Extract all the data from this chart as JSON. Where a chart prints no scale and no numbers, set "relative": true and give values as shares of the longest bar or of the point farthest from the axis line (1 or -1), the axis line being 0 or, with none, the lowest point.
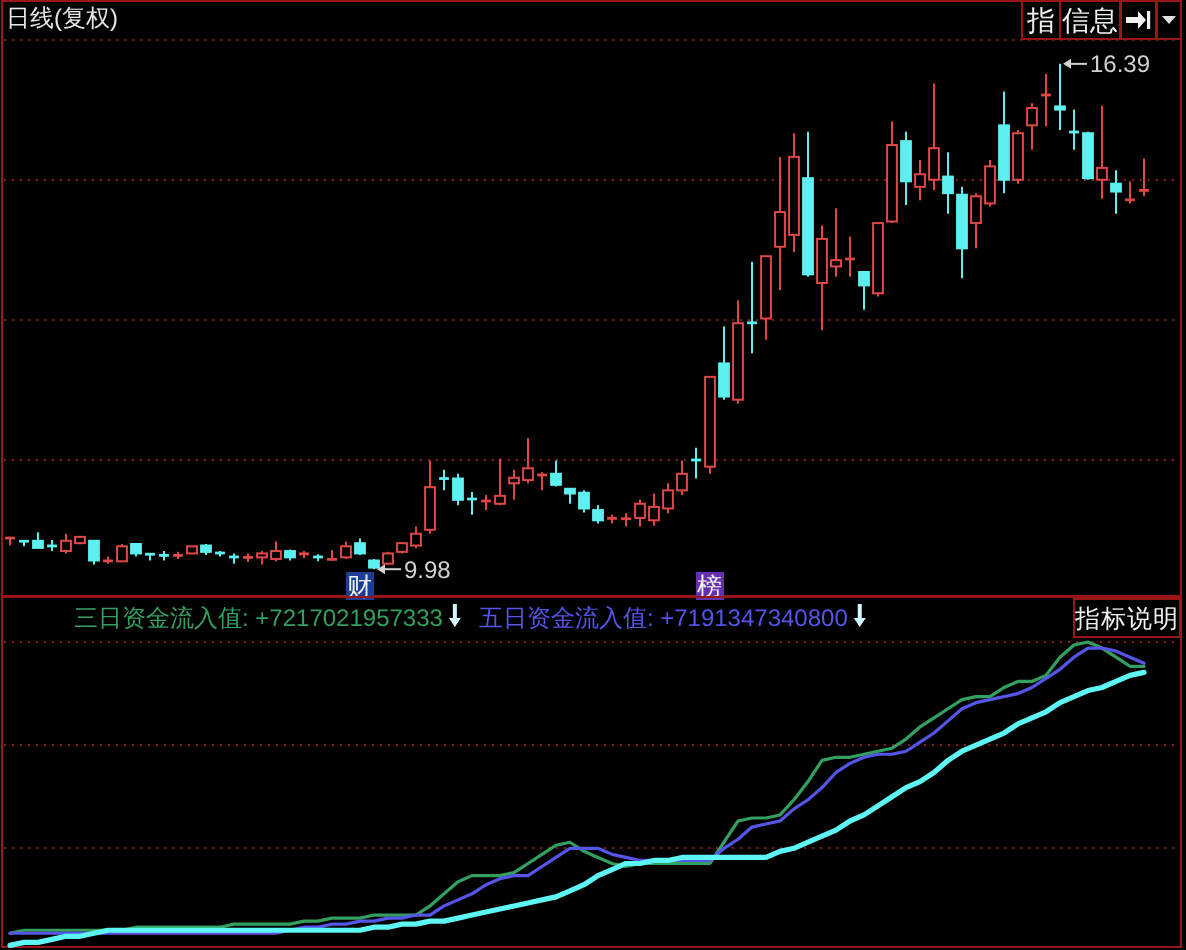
{
  "chart_data": [
    {
      "type": "candlestick",
      "title": "日线(复权)",
      "categories": [
        null,
        null,
        null,
        null,
        null,
        null,
        null,
        null,
        null,
        null,
        null,
        null,
        null,
        null,
        null,
        null,
        null,
        null,
        null,
        null,
        null,
        null,
        null,
        null,
        null,
        null,
        null,
        null,
        null,
        null,
        null,
        null,
        null,
        null,
        null,
        null,
        null,
        null,
        null,
        null,
        null,
        null,
        null,
        null,
        null,
        null,
        null,
        null,
        null,
        null,
        null,
        null,
        null,
        null,
        null,
        null,
        null,
        null,
        null,
        null,
        null,
        null,
        null,
        null,
        null,
        null,
        null,
        null,
        null,
        null,
        null,
        null,
        null,
        null,
        null,
        null,
        null,
        null,
        null,
        null,
        null,
        null
      ],
      "ohlc": [
        [
          10.37,
          10.39,
          10.28,
          10.38
        ],
        [
          10.34,
          10.34,
          10.27,
          10.33
        ],
        [
          10.34,
          10.45,
          10.25,
          10.25
        ],
        [
          10.28,
          10.35,
          10.21,
          10.27
        ],
        [
          10.21,
          10.43,
          10.18,
          10.34
        ],
        [
          10.31,
          10.4,
          10.3,
          10.39
        ],
        [
          10.34,
          10.34,
          10.04,
          10.09
        ],
        [
          10.08,
          10.14,
          10.05,
          10.09
        ],
        [
          10.08,
          10.3,
          10.07,
          10.27
        ],
        [
          10.3,
          10.31,
          10.14,
          10.18
        ],
        [
          10.18,
          10.18,
          10.09,
          10.16
        ],
        [
          10.16,
          10.21,
          10.09,
          10.15
        ],
        [
          10.15,
          10.2,
          10.11,
          10.16
        ],
        [
          10.18,
          10.27,
          10.17,
          10.27
        ],
        [
          10.28,
          10.3,
          10.16,
          10.2
        ],
        [
          10.19,
          10.21,
          10.14,
          10.18
        ],
        [
          10.14,
          10.18,
          10.05,
          10.13
        ],
        [
          10.12,
          10.18,
          10.07,
          10.14
        ],
        [
          10.13,
          10.21,
          10.04,
          10.18
        ],
        [
          10.11,
          10.33,
          10.08,
          10.21
        ],
        [
          10.21,
          10.23,
          10.09,
          10.13
        ],
        [
          10.17,
          10.21,
          10.12,
          10.18
        ],
        [
          10.14,
          10.17,
          10.08,
          10.13
        ],
        [
          10.1,
          10.22,
          10.09,
          10.11
        ],
        [
          10.13,
          10.33,
          10.11,
          10.27
        ],
        [
          10.31,
          10.37,
          10.16,
          10.18
        ],
        [
          10.09,
          10.11,
          9.98,
          10.0
        ],
        [
          10.05,
          10.2,
          10.04,
          10.18
        ],
        [
          10.2,
          10.32,
          10.18,
          10.31
        ],
        [
          10.28,
          10.52,
          10.25,
          10.43
        ],
        [
          10.48,
          11.36,
          10.43,
          11.02
        ],
        [
          11.14,
          11.24,
          10.98,
          11.12
        ],
        [
          11.13,
          11.19,
          10.79,
          10.86
        ],
        [
          10.88,
          10.96,
          10.67,
          10.86
        ],
        [
          10.83,
          10.92,
          10.73,
          10.86
        ],
        [
          10.81,
          11.38,
          10.79,
          10.91
        ],
        [
          11.07,
          11.24,
          10.86,
          11.14
        ],
        [
          11.11,
          11.64,
          11.07,
          11.26
        ],
        [
          11.17,
          11.21,
          10.98,
          11.18
        ],
        [
          11.19,
          11.36,
          11.03,
          11.05
        ],
        [
          11.0,
          11.0,
          10.81,
          10.94
        ],
        [
          10.95,
          10.98,
          10.7,
          10.75
        ],
        [
          10.73,
          10.79,
          10.56,
          10.6
        ],
        [
          10.62,
          10.67,
          10.56,
          10.63
        ],
        [
          10.61,
          10.69,
          10.52,
          10.63
        ],
        [
          10.63,
          10.86,
          10.52,
          10.81
        ],
        [
          10.6,
          10.94,
          10.53,
          10.77
        ],
        [
          10.75,
          11.07,
          10.69,
          10.98
        ],
        [
          10.98,
          11.36,
          10.92,
          11.19
        ],
        [
          11.37,
          11.52,
          11.13,
          11.36
        ],
        [
          11.28,
          12.42,
          11.19,
          12.42
        ],
        [
          12.59,
          13.06,
          12.13,
          12.17
        ],
        [
          12.13,
          13.39,
          12.08,
          13.1
        ],
        [
          13.12,
          13.88,
          12.72,
          13.09
        ],
        [
          13.16,
          13.95,
          12.89,
          13.95
        ],
        [
          14.07,
          15.21,
          13.52,
          14.51
        ],
        [
          14.22,
          15.51,
          14.0,
          15.21
        ],
        [
          14.94,
          15.53,
          13.69,
          13.72
        ],
        [
          13.61,
          14.34,
          13.01,
          14.17
        ],
        [
          13.82,
          14.56,
          13.69,
          13.9
        ],
        [
          13.91,
          14.2,
          13.69,
          13.92
        ],
        [
          13.75,
          13.75,
          13.27,
          13.58
        ],
        [
          13.48,
          14.37,
          13.44,
          14.37
        ],
        [
          14.39,
          15.66,
          14.37,
          15.36
        ],
        [
          15.41,
          15.53,
          14.6,
          14.9
        ],
        [
          14.83,
          15.17,
          14.66,
          14.99
        ],
        [
          14.92,
          16.14,
          14.79,
          15.32
        ],
        [
          14.96,
          15.27,
          14.49,
          14.75
        ],
        [
          14.73,
          14.83,
          13.67,
          14.05
        ],
        [
          14.37,
          14.75,
          14.05,
          14.71
        ],
        [
          14.62,
          15.17,
          14.58,
          15.09
        ],
        [
          15.61,
          16.04,
          14.75,
          14.92
        ],
        [
          14.92,
          15.55,
          14.87,
          15.51
        ],
        [
          15.61,
          15.89,
          15.3,
          15.83
        ],
        [
          15.99,
          16.26,
          15.6,
          16.0
        ],
        [
          15.85,
          16.39,
          15.55,
          15.81
        ],
        [
          15.54,
          15.81,
          15.3,
          15.51
        ],
        [
          15.51,
          15.53,
          14.92,
          14.94
        ],
        [
          14.92,
          15.86,
          14.68,
          15.07
        ],
        [
          14.87,
          15.04,
          14.49,
          14.77
        ],
        [
          14.66,
          14.9,
          14.62,
          14.67
        ],
        [
          14.78,
          15.19,
          14.71,
          14.79
        ]
      ],
      "colors": [
        "#e04848",
        "#5ef0f0",
        "#5ef0f0",
        "#5ef0f0",
        "#e04848",
        "#e04848",
        "#5ef0f0",
        "#e04848",
        "#e04848",
        "#5ef0f0",
        "#5ef0f0",
        "#5ef0f0",
        "#e04848",
        "#e04848",
        "#5ef0f0",
        "#5ef0f0",
        "#5ef0f0",
        "#e04848",
        "#e04848",
        "#e04848",
        "#5ef0f0",
        "#e04848",
        "#5ef0f0",
        "#e04848",
        "#e04848",
        "#5ef0f0",
        "#5ef0f0",
        "#e04848",
        "#e04848",
        "#e04848",
        "#e04848",
        "#5ef0f0",
        "#5ef0f0",
        "#5ef0f0",
        "#e04848",
        "#e04848",
        "#e04848",
        "#e04848",
        "#e04848",
        "#5ef0f0",
        "#5ef0f0",
        "#5ef0f0",
        "#5ef0f0",
        "#e04848",
        "#e04848",
        "#e04848",
        "#e04848",
        "#e04848",
        "#e04848",
        "#5ef0f0",
        "#e04848",
        "#5ef0f0",
        "#e04848",
        "#5ef0f0",
        "#e04848",
        "#e04848",
        "#e04848",
        "#5ef0f0",
        "#e04848",
        "#e04848",
        "#e04848",
        "#5ef0f0",
        "#e04848",
        "#e04848",
        "#5ef0f0",
        "#e04848",
        "#e04848",
        "#5ef0f0",
        "#5ef0f0",
        "#e04848",
        "#e04848",
        "#5ef0f0",
        "#e04848",
        "#e04848",
        "#e04848",
        "#5ef0f0",
        "#5ef0f0",
        "#5ef0f0",
        "#e04848",
        "#5ef0f0",
        "#e04848",
        "#e04848"
      ],
      "ylim": [
        9.64,
        17.2
      ],
      "yticks": [
        {
          "value": 11.36,
          "label": null
        },
        {
          "value": 13.14,
          "label": null
        },
        {
          "value": 14.92,
          "label": null
        },
        {
          "value": 16.69,
          "label": null
        }
      ],
      "grid": "y",
      "annotations": [
        "16.39",
        "9.98",
        "财",
        "榜",
        "指",
        "信息"
      ]
    },
    {
      "type": "line",
      "categories": [
        null,
        null,
        null,
        null,
        null,
        null,
        null,
        null,
        null,
        null,
        null,
        null,
        null,
        null,
        null,
        null,
        null,
        null,
        null,
        null,
        null,
        null,
        null,
        null,
        null,
        null,
        null,
        null,
        null,
        null,
        null,
        null,
        null,
        null,
        null,
        null,
        null,
        null,
        null,
        null,
        null,
        null,
        null,
        null,
        null,
        null,
        null,
        null,
        null,
        null,
        null,
        null,
        null,
        null,
        null,
        null,
        null,
        null,
        null,
        null,
        null,
        null,
        null,
        null,
        null,
        null,
        null,
        null,
        null,
        null,
        null,
        null,
        null,
        null,
        null,
        null,
        null,
        null,
        null,
        null,
        null,
        null
      ],
      "relative": true,
      "series": [
        {
          "name": "三日资金流入值: +7217021957333",
          "color": "#34a060",
          "values": [
            0.04,
            0.05,
            0.05,
            0.05,
            0.05,
            0.05,
            0.05,
            0.05,
            0.05,
            0.06,
            0.06,
            0.06,
            0.06,
            0.06,
            0.06,
            0.06,
            0.07,
            0.07,
            0.07,
            0.07,
            0.07,
            0.08,
            0.08,
            0.09,
            0.09,
            0.09,
            0.1,
            0.1,
            0.1,
            0.1,
            0.13,
            0.17,
            0.21,
            0.23,
            0.23,
            0.23,
            0.24,
            0.27,
            0.3,
            0.33,
            0.34,
            0.31,
            0.29,
            0.27,
            0.26,
            0.27,
            0.27,
            0.27,
            0.27,
            0.27,
            0.27,
            0.34,
            0.41,
            0.42,
            0.42,
            0.43,
            0.48,
            0.54,
            0.61,
            0.62,
            0.62,
            0.63,
            0.64,
            0.65,
            0.68,
            0.72,
            0.75,
            0.78,
            0.81,
            0.82,
            0.82,
            0.85,
            0.87,
            0.87,
            0.89,
            0.95,
            0.99,
            1.0,
            0.98,
            0.95,
            0.92,
            0.92
          ]
        },
        {
          "name": "五日资金流入值: +7191347340800",
          "color": "#5555e8",
          "values": [
            0.04,
            0.04,
            0.04,
            0.04,
            0.04,
            0.04,
            0.04,
            0.04,
            0.04,
            0.04,
            0.04,
            0.04,
            0.04,
            0.04,
            0.04,
            0.04,
            0.04,
            0.04,
            0.04,
            0.04,
            0.05,
            0.06,
            0.06,
            0.07,
            0.07,
            0.08,
            0.08,
            0.09,
            0.09,
            0.1,
            0.1,
            0.13,
            0.15,
            0.17,
            0.2,
            0.22,
            0.23,
            0.23,
            0.26,
            0.29,
            0.32,
            0.32,
            0.32,
            0.3,
            0.29,
            0.28,
            0.28,
            0.28,
            0.28,
            0.28,
            0.28,
            0.32,
            0.35,
            0.39,
            0.4,
            0.41,
            0.45,
            0.48,
            0.52,
            0.57,
            0.6,
            0.62,
            0.63,
            0.63,
            0.64,
            0.67,
            0.7,
            0.74,
            0.78,
            0.8,
            0.81,
            0.82,
            0.83,
            0.85,
            0.88,
            0.91,
            0.95,
            0.98,
            0.98,
            0.97,
            0.95,
            0.93
          ]
        },
        {
          "color": "#5ef5f5",
          "values": [
            0,
            0.01,
            0.01,
            0.02,
            0.03,
            0.03,
            0.04,
            0.05,
            0.05,
            0.05,
            0.05,
            0.05,
            0.05,
            0.05,
            0.05,
            0.05,
            0.05,
            0.05,
            0.05,
            0.05,
            0.05,
            0.05,
            0.05,
            0.05,
            0.05,
            0.05,
            0.06,
            0.06,
            0.07,
            0.07,
            0.08,
            0.08,
            0.09,
            0.1,
            0.11,
            0.12,
            0.13,
            0.14,
            0.15,
            0.16,
            0.18,
            0.2,
            0.23,
            0.25,
            0.27,
            0.27,
            0.28,
            0.28,
            0.29,
            0.29,
            0.29,
            0.29,
            0.29,
            0.29,
            0.29,
            0.31,
            0.32,
            0.34,
            0.36,
            0.38,
            0.41,
            0.43,
            0.46,
            0.49,
            0.52,
            0.54,
            0.57,
            0.61,
            0.64,
            0.66,
            0.68,
            0.7,
            0.73,
            0.75,
            0.77,
            0.8,
            0.82,
            0.84,
            0.85,
            0.87,
            0.89,
            0.9
          ]
        }
      ],
      "legend": "top left",
      "ref_lines": [
        {
          "axis": "y",
          "value": 1.0,
          "color": "#8c1c1c",
          "line_style": "dotted"
        },
        {
          "axis": "y",
          "value": 0.66,
          "color": "#8c1c1c",
          "line_style": "dotted"
        },
        {
          "axis": "y",
          "value": 0.32,
          "color": "#8c1c1c",
          "line_style": "dotted"
        }
      ],
      "annotations": [
        "指标说明"
      ]
    }
  ]
}
